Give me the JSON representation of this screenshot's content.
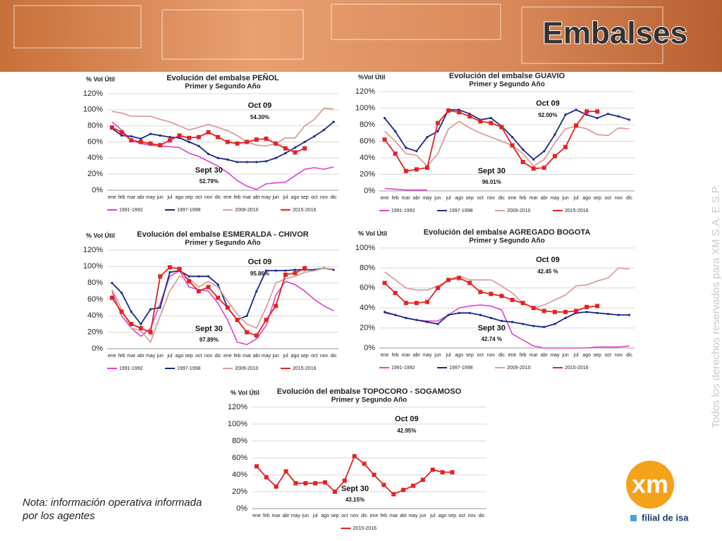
{
  "header": {
    "title": "Embalses"
  },
  "note": "Nota: información operativa informada por los agentes",
  "copyright": "Todos los derechos reservados para XM S.A. E.S.P.",
  "logo": {
    "brand": "xm",
    "tagline": "filial de isa"
  },
  "chart_data": [
    {
      "type": "line",
      "title": "Evolución del embalse PEÑOL",
      "subtitle": "Primer y Segundo Año",
      "y_label": "% Vol Útil",
      "categories": [
        "ene",
        "feb",
        "mar",
        "abr",
        "may",
        "jun",
        "jul",
        "ago",
        "sep",
        "oct",
        "nov",
        "dic",
        "ene",
        "feb",
        "mar",
        "abr",
        "may",
        "jun",
        "jul",
        "ago",
        "sep",
        "oct",
        "nov",
        "dic"
      ],
      "ylim": [
        0,
        120
      ],
      "yticks": [
        {
          "value": 0,
          "label": "0%"
        },
        {
          "value": 20,
          "label": "20%"
        },
        {
          "value": 40,
          "label": "40%"
        },
        {
          "value": 60,
          "label": "60%"
        },
        {
          "value": 80,
          "label": "80%"
        },
        {
          "value": 100,
          "label": "100%"
        },
        {
          "value": 120,
          "label": "120%"
        }
      ],
      "annotations": [
        "Oct 09",
        "54.30%",
        "Sept 30",
        "52.79%"
      ],
      "series": [
        {
          "name": "1991-1992",
          "color": "#e044c8",
          "values": [
            85,
            75,
            62,
            58,
            56,
            55,
            54,
            53,
            46,
            42,
            36,
            30,
            22,
            12,
            5,
            1,
            8,
            9,
            10,
            18,
            26,
            28,
            26,
            29
          ]
        },
        {
          "name": "1997-1998",
          "color": "#1a2a8a",
          "values": [
            77,
            68,
            67,
            64,
            70,
            68,
            66,
            65,
            60,
            55,
            45,
            40,
            38,
            35,
            35,
            35,
            36,
            40,
            46,
            53,
            60,
            67,
            75,
            85
          ]
        },
        {
          "name": "2009-2010",
          "color": "#d9a09a",
          "values": [
            98,
            96,
            92,
            92,
            92,
            88,
            85,
            80,
            75,
            78,
            82,
            78,
            74,
            68,
            60,
            56,
            55,
            58,
            65,
            65,
            80,
            88,
            102,
            101
          ]
        },
        {
          "name": "2015-2016",
          "color": "#e52222",
          "values": [
            78,
            72,
            62,
            60,
            58,
            56,
            62,
            68,
            65,
            66,
            72,
            66,
            60,
            58,
            60,
            63,
            64,
            58,
            52,
            47,
            52,
            null,
            null,
            null
          ]
        }
      ]
    },
    {
      "type": "line",
      "title": "Evolución del embalse GUAVIO",
      "subtitle": "Primer y Segundo Año",
      "y_label": "%Vol Útil",
      "categories": [
        "ene",
        "feb",
        "mar",
        "abr",
        "may",
        "jun",
        "jul",
        "ago",
        "sep",
        "oct",
        "nov",
        "dic",
        "ene",
        "feb",
        "mar",
        "abr",
        "may",
        "jun",
        "jul",
        "ago",
        "sep",
        "oct",
        "nov",
        "dic"
      ],
      "ylim": [
        0,
        120
      ],
      "yticks": [
        {
          "value": 0,
          "label": "0%"
        },
        {
          "value": 20,
          "label": "20%"
        },
        {
          "value": 40,
          "label": "40%"
        },
        {
          "value": 60,
          "label": "60%"
        },
        {
          "value": 80,
          "label": "80%"
        },
        {
          "value": 100,
          "label": "100%"
        },
        {
          "value": 120,
          "label": "120%"
        }
      ],
      "annotations": [
        "Oct 09",
        "92.00%",
        "Sept 30",
        "96.01%"
      ],
      "series": [
        {
          "name": "1991-1992",
          "color": "#e044c8",
          "values": [
            3,
            2,
            1,
            1,
            1,
            null,
            null,
            null,
            null,
            null,
            null,
            null,
            null,
            null,
            null,
            null,
            null,
            null,
            null,
            null,
            null,
            null,
            null,
            null
          ]
        },
        {
          "name": "1997-1998",
          "color": "#1a2a8a",
          "values": [
            88,
            72,
            52,
            48,
            65,
            72,
            98,
            98,
            93,
            86,
            88,
            78,
            65,
            50,
            38,
            48,
            68,
            92,
            98,
            92,
            88,
            93,
            90,
            86
          ]
        },
        {
          "name": "2009-2010",
          "color": "#d9a09a",
          "values": [
            72,
            60,
            45,
            43,
            30,
            45,
            75,
            84,
            76,
            70,
            65,
            60,
            55,
            45,
            30,
            38,
            58,
            75,
            78,
            75,
            68,
            67,
            76,
            75
          ]
        },
        {
          "name": "2015-2016",
          "color": "#e52222",
          "values": [
            62,
            45,
            24,
            26,
            28,
            82,
            97,
            95,
            90,
            84,
            82,
            77,
            55,
            35,
            27,
            28,
            42,
            53,
            79,
            96,
            96,
            null,
            null,
            null
          ]
        }
      ]
    },
    {
      "type": "line",
      "title": "Evolución del embalse ESMERALDA - CHIVOR",
      "subtitle": "Primer y Segundo Año",
      "y_label": "% Vol Útil",
      "categories": [
        "ene",
        "feb",
        "mar",
        "abr",
        "may",
        "jun",
        "jul",
        "ago",
        "sep",
        "oct",
        "nov",
        "dic",
        "ene",
        "feb",
        "mar",
        "abr",
        "may",
        "jun",
        "jul",
        "ago",
        "sep",
        "oct",
        "nov",
        "dic"
      ],
      "ylim": [
        0,
        120
      ],
      "yticks": [
        {
          "value": 0,
          "label": "0%"
        },
        {
          "value": 20,
          "label": "20%"
        },
        {
          "value": 40,
          "label": "40%"
        },
        {
          "value": 60,
          "label": "60%"
        },
        {
          "value": 80,
          "label": "80%"
        },
        {
          "value": 100,
          "label": "100%"
        },
        {
          "value": 120,
          "label": "120%"
        }
      ],
      "annotations": [
        "Oct 09",
        "95.86%",
        "Sept 30",
        "97.89%"
      ],
      "series": [
        {
          "name": "1991-1992",
          "color": "#e044c8",
          "values": [
            70,
            40,
            25,
            15,
            25,
            55,
            88,
            95,
            75,
            72,
            70,
            55,
            35,
            8,
            5,
            12,
            28,
            65,
            82,
            78,
            70,
            60,
            52,
            46
          ]
        },
        {
          "name": "1997-1998",
          "color": "#1a2a8a",
          "values": [
            80,
            68,
            45,
            30,
            48,
            50,
            93,
            95,
            88,
            88,
            88,
            78,
            50,
            35,
            40,
            70,
            95,
            95,
            95,
            96,
            96,
            96,
            98,
            96
          ]
        },
        {
          "name": "2009-2010",
          "color": "#d9a09a",
          "values": [
            72,
            48,
            25,
            22,
            8,
            40,
            70,
            88,
            85,
            75,
            82,
            75,
            58,
            42,
            30,
            25,
            50,
            80,
            85,
            88,
            93,
            95,
            98,
            97
          ]
        },
        {
          "name": "2015-2016",
          "color": "#e52222",
          "values": [
            62,
            45,
            30,
            25,
            20,
            88,
            99,
            97,
            82,
            70,
            75,
            62,
            50,
            35,
            20,
            16,
            35,
            52,
            90,
            92,
            98,
            null,
            null,
            null
          ]
        }
      ]
    },
    {
      "type": "line",
      "title": "Evolución del embalse AGREGADO BOGOTA",
      "subtitle": "Primer y Segundo Año",
      "y_label": "% Vol Útil",
      "categories": [
        "ene",
        "feb",
        "mar",
        "abr",
        "may",
        "jun",
        "jul",
        "ago",
        "sep",
        "oct",
        "nov",
        "dic",
        "ene",
        "feb",
        "mar",
        "abr",
        "may",
        "jun",
        "jul",
        "ago",
        "sep",
        "oct",
        "nov",
        "dic"
      ],
      "ylim": [
        0,
        100
      ],
      "yticks": [
        {
          "value": 0,
          "label": "0%"
        },
        {
          "value": 20,
          "label": "20%"
        },
        {
          "value": 40,
          "label": "40%"
        },
        {
          "value": 60,
          "label": "60%"
        },
        {
          "value": 80,
          "label": "80%"
        },
        {
          "value": 100,
          "label": "100%"
        }
      ],
      "annotations": [
        "Oct 09",
        "42.45 %",
        "Sept 30",
        "42.74 %"
      ],
      "series": [
        {
          "name": "1991-1992",
          "color": "#e044c8",
          "values": [
            35,
            33,
            30,
            28,
            27,
            27,
            33,
            40,
            42,
            43,
            42,
            38,
            14,
            8,
            2,
            0,
            0,
            0,
            0,
            0,
            1,
            1,
            1,
            2
          ]
        },
        {
          "name": "1997-1998",
          "color": "#1a2a8a",
          "values": [
            36,
            33,
            30,
            28,
            26,
            24,
            33,
            35,
            35,
            33,
            30,
            27,
            26,
            24,
            22,
            21,
            24,
            30,
            35,
            36,
            35,
            34,
            33,
            33
          ]
        },
        {
          "name": "2009-2010",
          "color": "#d9a09a",
          "values": [
            76,
            68,
            60,
            58,
            58,
            62,
            68,
            72,
            68,
            68,
            68,
            62,
            55,
            45,
            40,
            43,
            48,
            53,
            62,
            63,
            67,
            70,
            80,
            79
          ]
        },
        {
          "name": "2015-2016",
          "color": "#e52222",
          "values": [
            65,
            55,
            45,
            45,
            46,
            60,
            68,
            70,
            65,
            56,
            54,
            52,
            48,
            45,
            40,
            37,
            36,
            36,
            37,
            41,
            42,
            null,
            null,
            null
          ]
        }
      ]
    },
    {
      "type": "line",
      "title": "Evolución del embalse TOPOCORO - SOGAMOSO",
      "subtitle": "Primer y Segundo Año",
      "y_label": "% Vol Útil",
      "categories": [
        "ene",
        "feb",
        "mar",
        "abr",
        "may",
        "jun",
        "jul",
        "ago",
        "sep",
        "oct",
        "nov",
        "dic",
        "ene",
        "feb",
        "mar",
        "abr",
        "may",
        "jun",
        "jul",
        "ago",
        "sep",
        "oct",
        "nov",
        "dic"
      ],
      "ylim": [
        0,
        120
      ],
      "yticks": [
        {
          "value": 0,
          "label": "0%"
        },
        {
          "value": 20,
          "label": "20%"
        },
        {
          "value": 40,
          "label": "40%"
        },
        {
          "value": 60,
          "label": "60%"
        },
        {
          "value": 80,
          "label": "80%"
        },
        {
          "value": 100,
          "label": "100%"
        },
        {
          "value": 120,
          "label": "120%"
        }
      ],
      "annotations": [
        "Oct 09",
        "42.95%",
        "Sept 30",
        "43.15%"
      ],
      "series": [
        {
          "name": "2015-2016",
          "color": "#e52222",
          "values": [
            50,
            37,
            26,
            44,
            30,
            30,
            30,
            31,
            20,
            33,
            62,
            53,
            40,
            28,
            17,
            22,
            27,
            34,
            46,
            43,
            43,
            null,
            null,
            null
          ]
        }
      ]
    }
  ]
}
